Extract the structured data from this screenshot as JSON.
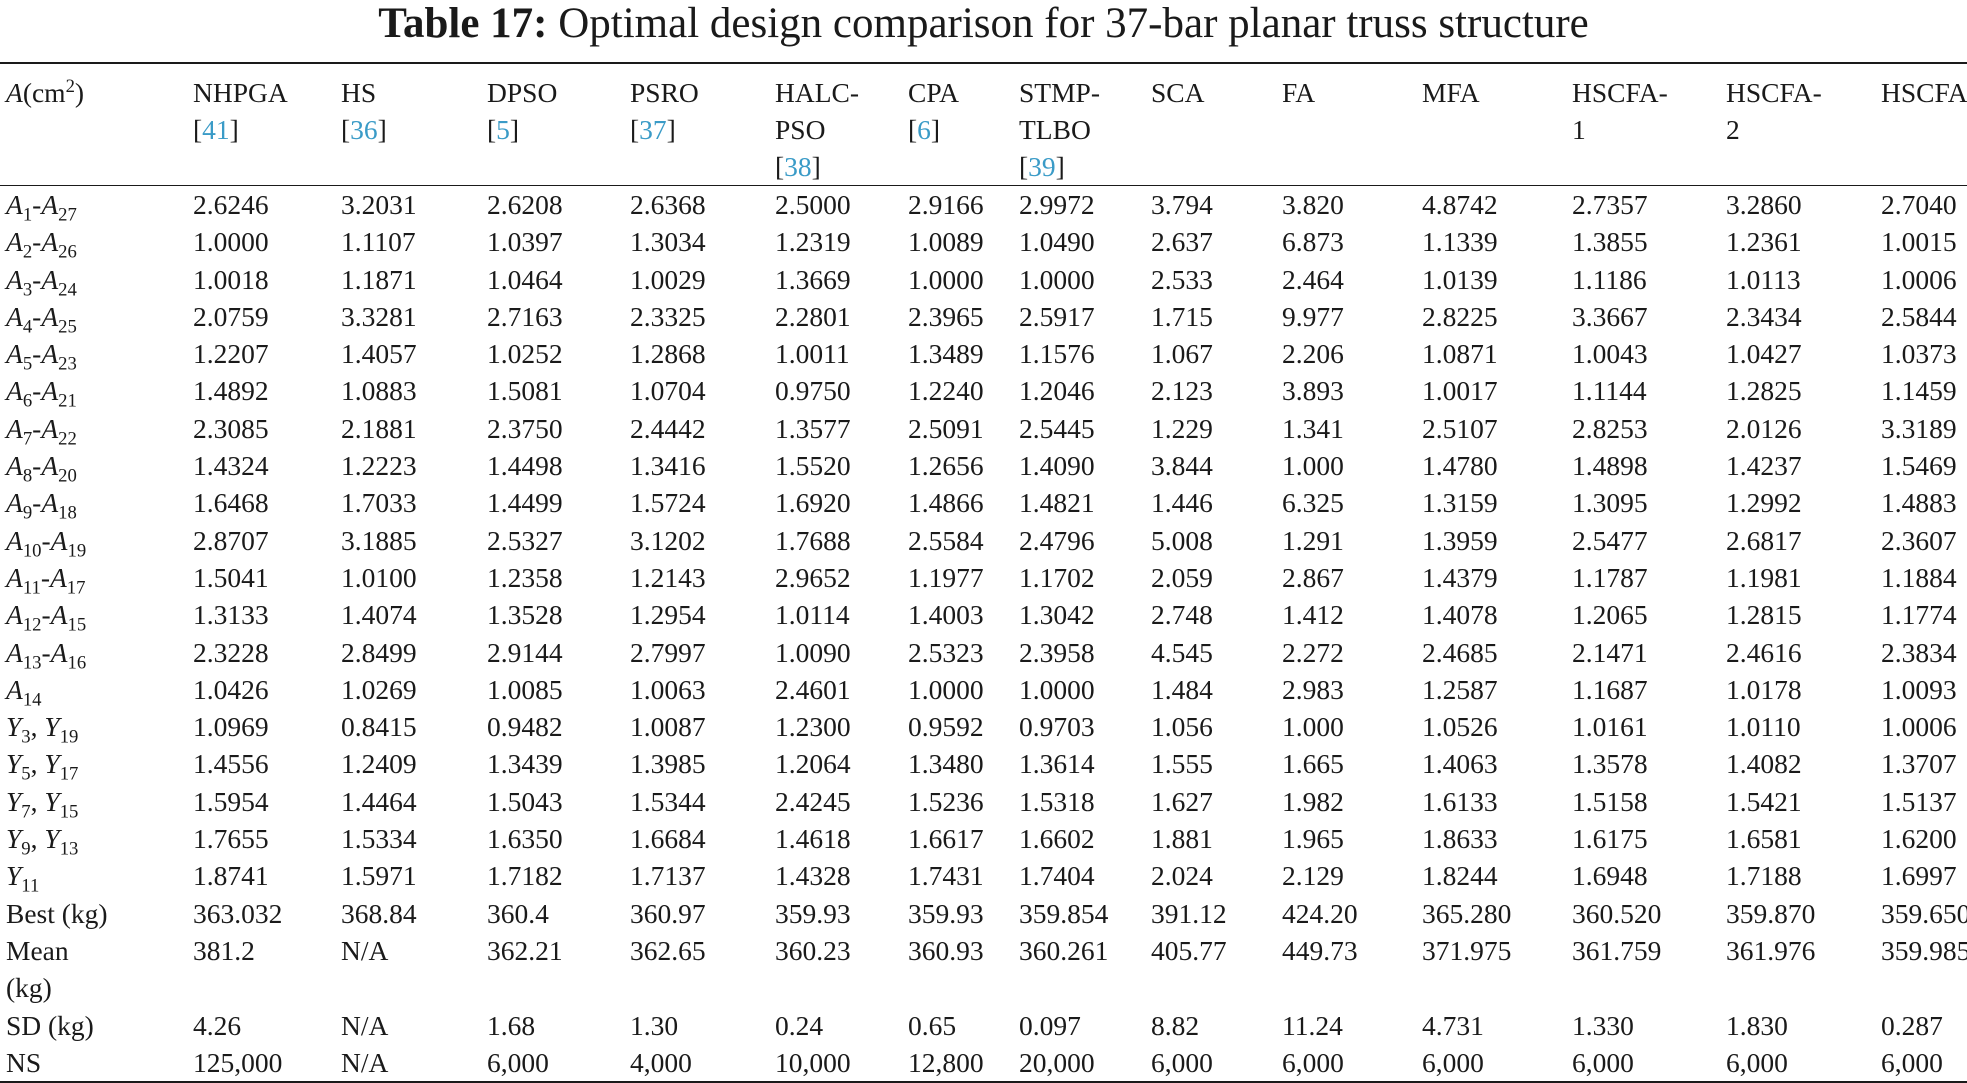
{
  "caption": {
    "label": "Table 17:",
    "text": "Optimal design comparison for 37-bar planar truss structure"
  },
  "header": {
    "first": {
      "var": "A",
      "unit_pre": "(cm",
      "unit_sup": "2",
      "unit_post": ")"
    },
    "columns": [
      {
        "l1": "NHPGA",
        "l2": "",
        "ref": "41"
      },
      {
        "l1": "HS",
        "l2": "",
        "ref": "36"
      },
      {
        "l1": "DPSO",
        "l2": "",
        "ref": "5"
      },
      {
        "l1": "PSRO",
        "l2": "",
        "ref": "37"
      },
      {
        "l1": "HALC-",
        "l2": "PSO",
        "ref": "38"
      },
      {
        "l1": "CPA",
        "l2": "",
        "ref": "6"
      },
      {
        "l1": "STMP-",
        "l2": "TLBO",
        "ref": "39"
      },
      {
        "l1": "SCA",
        "l2": "",
        "ref": ""
      },
      {
        "l1": "FA",
        "l2": "",
        "ref": ""
      },
      {
        "l1": "MFA",
        "l2": "",
        "ref": ""
      },
      {
        "l1": "HSCFA-",
        "l2": "1",
        "ref": ""
      },
      {
        "l1": "HSCFA-",
        "l2": "2",
        "ref": ""
      },
      {
        "l1": "HSCFA",
        "l2": "",
        "ref": ""
      }
    ]
  },
  "rows": [
    {
      "v1": "A",
      "s1": "1",
      "sep": "-",
      "v2": "A",
      "s2": "27",
      "values": [
        "2.6246",
        "3.2031",
        "2.6208",
        "2.6368",
        "2.5000",
        "2.9166",
        "2.9972",
        "3.794",
        "3.820",
        "4.8742",
        "2.7357",
        "3.2860",
        "2.7040"
      ]
    },
    {
      "v1": "A",
      "s1": "2",
      "sep": "-",
      "v2": "A",
      "s2": "26",
      "values": [
        "1.0000",
        "1.1107",
        "1.0397",
        "1.3034",
        "1.2319",
        "1.0089",
        "1.0490",
        "2.637",
        "6.873",
        "1.1339",
        "1.3855",
        "1.2361",
        "1.0015"
      ]
    },
    {
      "v1": "A",
      "s1": "3",
      "sep": "-",
      "v2": "A",
      "s2": "24",
      "values": [
        "1.0018",
        "1.1871",
        "1.0464",
        "1.0029",
        "1.3669",
        "1.0000",
        "1.0000",
        "2.533",
        "2.464",
        "1.0139",
        "1.1186",
        "1.0113",
        "1.0006"
      ]
    },
    {
      "v1": "A",
      "s1": "4",
      "sep": "-",
      "v2": "A",
      "s2": "25",
      "values": [
        "2.0759",
        "3.3281",
        "2.7163",
        "2.3325",
        "2.2801",
        "2.3965",
        "2.5917",
        "1.715",
        "9.977",
        "2.8225",
        "3.3667",
        "2.3434",
        "2.5844"
      ]
    },
    {
      "v1": "A",
      "s1": "5",
      "sep": "-",
      "v2": "A",
      "s2": "23",
      "values": [
        "1.2207",
        "1.4057",
        "1.0252",
        "1.2868",
        "1.0011",
        "1.3489",
        "1.1576",
        "1.067",
        "2.206",
        "1.0871",
        "1.0043",
        "1.0427",
        "1.0373"
      ]
    },
    {
      "v1": "A",
      "s1": "6",
      "sep": "-",
      "v2": "A",
      "s2": "21",
      "values": [
        "1.4892",
        "1.0883",
        "1.5081",
        "1.0704",
        "0.9750",
        "1.2240",
        "1.2046",
        "2.123",
        "3.893",
        "1.0017",
        "1.1144",
        "1.2825",
        "1.1459"
      ]
    },
    {
      "v1": "A",
      "s1": "7",
      "sep": "-",
      "v2": "A",
      "s2": "22",
      "values": [
        "2.3085",
        "2.1881",
        "2.3750",
        "2.4442",
        "1.3577",
        "2.5091",
        "2.5445",
        "1.229",
        "1.341",
        "2.5107",
        "2.8253",
        "2.0126",
        "3.3189"
      ]
    },
    {
      "v1": "A",
      "s1": "8",
      "sep": "-",
      "v2": "A",
      "s2": "20",
      "values": [
        "1.4324",
        "1.2223",
        "1.4498",
        "1.3416",
        "1.5520",
        "1.2656",
        "1.4090",
        "3.844",
        "1.000",
        "1.4780",
        "1.4898",
        "1.4237",
        "1.5469"
      ]
    },
    {
      "v1": "A",
      "s1": "9",
      "sep": "-",
      "v2": "A",
      "s2": "18",
      "values": [
        "1.6468",
        "1.7033",
        "1.4499",
        "1.5724",
        "1.6920",
        "1.4866",
        "1.4821",
        "1.446",
        "6.325",
        "1.3159",
        "1.3095",
        "1.2992",
        "1.4883"
      ]
    },
    {
      "v1": "A",
      "s1": "10",
      "sep": "-",
      "v2": "A",
      "s2": "19",
      "values": [
        "2.8707",
        "3.1885",
        "2.5327",
        "3.1202",
        "1.7688",
        "2.5584",
        "2.4796",
        "5.008",
        "1.291",
        "1.3959",
        "2.5477",
        "2.6817",
        "2.3607"
      ]
    },
    {
      "v1": "A",
      "s1": "11",
      "sep": "-",
      "v2": "A",
      "s2": "17",
      "values": [
        "1.5041",
        "1.0100",
        "1.2358",
        "1.2143",
        "2.9652",
        "1.1977",
        "1.1702",
        "2.059",
        "2.867",
        "1.4379",
        "1.1787",
        "1.1981",
        "1.1884"
      ]
    },
    {
      "v1": "A",
      "s1": "12",
      "sep": "-",
      "v2": "A",
      "s2": "15",
      "values": [
        "1.3133",
        "1.4074",
        "1.3528",
        "1.2954",
        "1.0114",
        "1.4003",
        "1.3042",
        "2.748",
        "1.412",
        "1.4078",
        "1.2065",
        "1.2815",
        "1.1774"
      ]
    },
    {
      "v1": "A",
      "s1": "13",
      "sep": "-",
      "v2": "A",
      "s2": "16",
      "values": [
        "2.3228",
        "2.8499",
        "2.9144",
        "2.7997",
        "1.0090",
        "2.5323",
        "2.3958",
        "4.545",
        "2.272",
        "2.4685",
        "2.1471",
        "2.4616",
        "2.3834"
      ]
    },
    {
      "v1": "A",
      "s1": "14",
      "sep": "",
      "v2": "",
      "s2": "",
      "values": [
        "1.0426",
        "1.0269",
        "1.0085",
        "1.0063",
        "2.4601",
        "1.0000",
        "1.0000",
        "1.484",
        "2.983",
        "1.2587",
        "1.1687",
        "1.0178",
        "1.0093"
      ]
    },
    {
      "v1": "Y",
      "s1": "3",
      "sep": ", ",
      "v2": "Y",
      "s2": "19",
      "values": [
        "1.0969",
        "0.8415",
        "0.9482",
        "1.0087",
        "1.2300",
        "0.9592",
        "0.9703",
        "1.056",
        "1.000",
        "1.0526",
        "1.0161",
        "1.0110",
        "1.0006"
      ]
    },
    {
      "v1": "Y",
      "s1": "5",
      "sep": ", ",
      "v2": "Y",
      "s2": "17",
      "values": [
        "1.4556",
        "1.2409",
        "1.3439",
        "1.3985",
        "1.2064",
        "1.3480",
        "1.3614",
        "1.555",
        "1.665",
        "1.4063",
        "1.3578",
        "1.4082",
        "1.3707"
      ]
    },
    {
      "v1": "Y",
      "s1": "7",
      "sep": ", ",
      "v2": "Y",
      "s2": "15",
      "values": [
        "1.5954",
        "1.4464",
        "1.5043",
        "1.5344",
        "2.4245",
        "1.5236",
        "1.5318",
        "1.627",
        "1.982",
        "1.6133",
        "1.5158",
        "1.5421",
        "1.5137"
      ]
    },
    {
      "v1": "Y",
      "s1": "9",
      "sep": ", ",
      "v2": "Y",
      "s2": "13",
      "values": [
        "1.7655",
        "1.5334",
        "1.6350",
        "1.6684",
        "1.4618",
        "1.6617",
        "1.6602",
        "1.881",
        "1.965",
        "1.8633",
        "1.6175",
        "1.6581",
        "1.6200"
      ]
    },
    {
      "v1": "Y",
      "s1": "11",
      "sep": "",
      "v2": "",
      "s2": "",
      "values": [
        "1.8741",
        "1.5971",
        "1.7182",
        "1.7137",
        "1.4328",
        "1.7431",
        "1.7404",
        "2.024",
        "2.129",
        "1.8244",
        "1.6948",
        "1.7188",
        "1.6997"
      ]
    }
  ],
  "stat_rows": [
    {
      "label": "Best (kg)",
      "label2": "",
      "values": [
        "363.032",
        "368.84",
        "360.4",
        "360.97",
        "359.93",
        "359.93",
        "359.854",
        "391.12",
        "424.20",
        "365.280",
        "360.520",
        "359.870",
        "359.650"
      ]
    },
    {
      "label": "Mean",
      "label2": "(kg)",
      "values": [
        "381.2",
        "N/A",
        "362.21",
        "362.65",
        "360.23",
        "360.93",
        "360.261",
        "405.77",
        "449.73",
        "371.975",
        "361.759",
        "361.976",
        "359.985"
      ]
    },
    {
      "label": "SD (kg)",
      "label2": "",
      "values": [
        "4.26",
        "N/A",
        "1.68",
        "1.30",
        "0.24",
        "0.65",
        "0.097",
        "8.82",
        "11.24",
        "4.731",
        "1.330",
        "1.830",
        "0.287"
      ]
    },
    {
      "label": "NS",
      "label2": "",
      "values": [
        "125,000",
        "N/A",
        "6,000",
        "4,000",
        "10,000",
        "12,800",
        "20,000",
        "6,000",
        "6,000",
        "6,000",
        "6,000",
        "6,000",
        "6,000"
      ]
    }
  ]
}
